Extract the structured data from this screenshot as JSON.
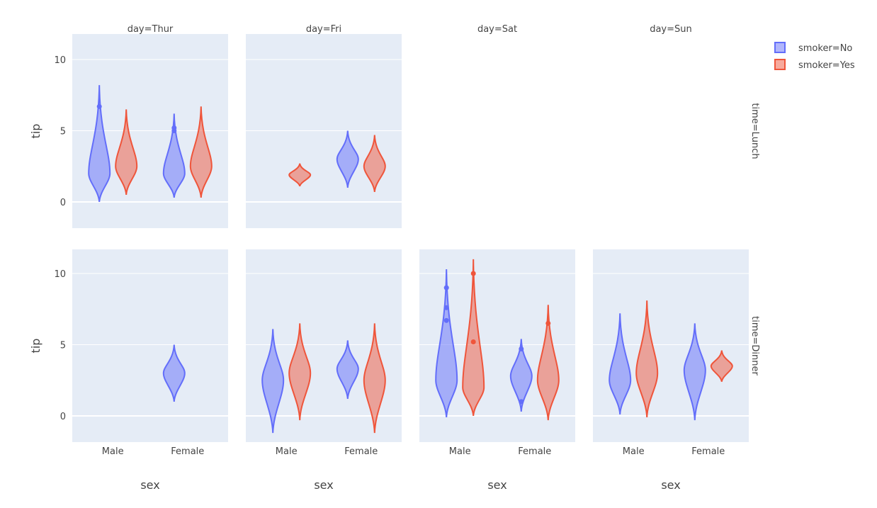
{
  "chart_data": {
    "type": "violin",
    "colors": {
      "No": "#636efa",
      "Yes": "#EF553B",
      "panel_bg": "#e5ecf6"
    },
    "columns": [
      "day=Thur",
      "day=Fri",
      "day=Sat",
      "day=Sun"
    ],
    "rows": [
      "time=Lunch",
      "time=Dinner"
    ],
    "categories": [
      "Male",
      "Female"
    ],
    "ylabel": "tip",
    "xlabel": "sex",
    "ylim": [
      -1.8,
      11.7
    ],
    "yticks": [
      "0",
      "5",
      "10"
    ],
    "legend": {
      "placement": "top-right",
      "items": [
        {
          "key": "No",
          "label": "smoker=No"
        },
        {
          "key": "Yes",
          "label": "smoker=Yes"
        }
      ]
    },
    "panels": [
      {
        "row": "time=Lunch",
        "col": "day=Thur",
        "violins": [
          {
            "sex": "Male",
            "smoker": "No",
            "min": 0.0,
            "max": 8.2,
            "mode": 2.0,
            "outliers": [
              6.7
            ]
          },
          {
            "sex": "Male",
            "smoker": "Yes",
            "min": 0.5,
            "max": 6.5,
            "mode": 2.5,
            "outliers": []
          },
          {
            "sex": "Female",
            "smoker": "No",
            "min": 0.3,
            "max": 6.2,
            "mode": 2.0,
            "outliers": [
              5.0,
              5.2
            ]
          },
          {
            "sex": "Female",
            "smoker": "Yes",
            "min": 0.3,
            "max": 6.7,
            "mode": 2.5,
            "outliers": []
          }
        ]
      },
      {
        "row": "time=Lunch",
        "col": "day=Fri",
        "violins": [
          {
            "sex": "Male",
            "smoker": "Yes",
            "min": 1.1,
            "max": 2.7,
            "mode": 1.9,
            "outliers": []
          },
          {
            "sex": "Female",
            "smoker": "No",
            "min": 1.0,
            "max": 5.0,
            "mode": 3.0,
            "outliers": []
          },
          {
            "sex": "Female",
            "smoker": "Yes",
            "min": 0.7,
            "max": 4.7,
            "mode": 2.5,
            "outliers": []
          }
        ]
      },
      {
        "row": "time=Lunch",
        "col": "day=Sat",
        "violins": [],
        "empty": true
      },
      {
        "row": "time=Lunch",
        "col": "day=Sun",
        "violins": [],
        "empty": true
      },
      {
        "row": "time=Dinner",
        "col": "day=Thur",
        "violins": [
          {
            "sex": "Female",
            "smoker": "No",
            "min": 1.0,
            "max": 5.0,
            "mode": 3.0,
            "outliers": []
          }
        ]
      },
      {
        "row": "time=Dinner",
        "col": "day=Fri",
        "violins": [
          {
            "sex": "Male",
            "smoker": "No",
            "min": -1.2,
            "max": 6.1,
            "mode": 2.5,
            "outliers": []
          },
          {
            "sex": "Male",
            "smoker": "Yes",
            "min": -0.3,
            "max": 6.5,
            "mode": 3.0,
            "outliers": []
          },
          {
            "sex": "Female",
            "smoker": "No",
            "min": 1.2,
            "max": 5.3,
            "mode": 3.3,
            "outliers": []
          },
          {
            "sex": "Female",
            "smoker": "Yes",
            "min": -1.2,
            "max": 6.5,
            "mode": 2.5,
            "outliers": []
          }
        ]
      },
      {
        "row": "time=Dinner",
        "col": "day=Sat",
        "violins": [
          {
            "sex": "Male",
            "smoker": "No",
            "min": -0.1,
            "max": 10.3,
            "mode": 2.5,
            "outliers": [
              9.0,
              7.6,
              6.7
            ]
          },
          {
            "sex": "Male",
            "smoker": "Yes",
            "min": 0.0,
            "max": 11.0,
            "mode": 2.0,
            "outliers": [
              10.0,
              5.2
            ]
          },
          {
            "sex": "Female",
            "smoker": "No",
            "min": 0.3,
            "max": 5.4,
            "mode": 2.8,
            "outliers": [
              4.7,
              1.0
            ]
          },
          {
            "sex": "Female",
            "smoker": "Yes",
            "min": -0.3,
            "max": 7.8,
            "mode": 2.5,
            "outliers": [
              6.5
            ]
          }
        ]
      },
      {
        "row": "time=Dinner",
        "col": "day=Sun",
        "violins": [
          {
            "sex": "Male",
            "smoker": "No",
            "min": 0.1,
            "max": 7.2,
            "mode": 2.5,
            "outliers": []
          },
          {
            "sex": "Male",
            "smoker": "Yes",
            "min": -0.1,
            "max": 8.1,
            "mode": 3.0,
            "outliers": []
          },
          {
            "sex": "Female",
            "smoker": "No",
            "min": -0.3,
            "max": 6.5,
            "mode": 3.2,
            "outliers": []
          },
          {
            "sex": "Female",
            "smoker": "Yes",
            "min": 2.4,
            "max": 4.6,
            "mode": 3.5,
            "outliers": []
          }
        ]
      }
    ]
  }
}
